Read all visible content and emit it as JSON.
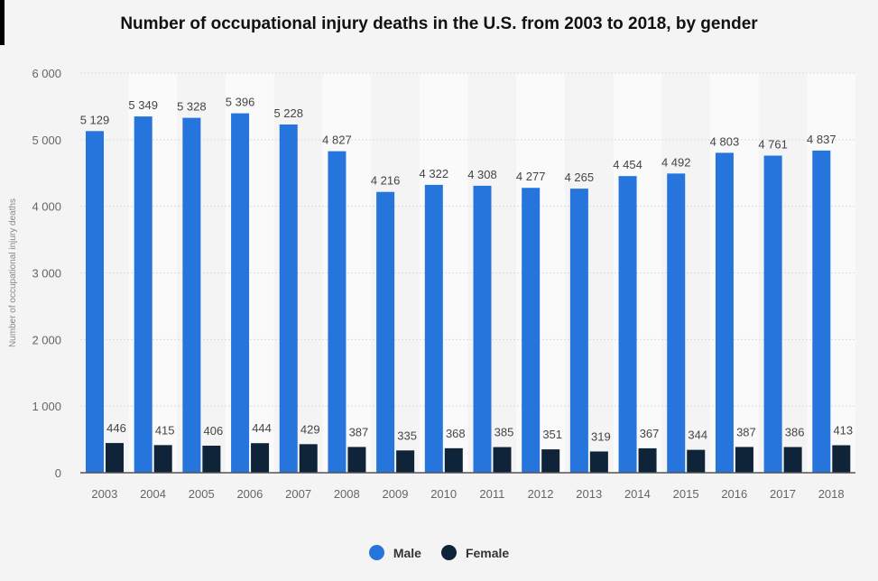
{
  "chart_data": {
    "type": "bar",
    "title": "Number of occupational injury deaths in the U.S. from 2003 to 2018, by gender",
    "xlabel": "",
    "ylabel": "Number of occupational injury deaths",
    "ylim": [
      0,
      6000
    ],
    "yticks": [
      0,
      1000,
      2000,
      3000,
      4000,
      5000,
      6000
    ],
    "grid": true,
    "legend_position": "bottom-center",
    "categories": [
      "2003",
      "2004",
      "2005",
      "2006",
      "2007",
      "2008",
      "2009",
      "2010",
      "2011",
      "2012",
      "2013",
      "2014",
      "2015",
      "2016",
      "2017",
      "2018"
    ],
    "series": [
      {
        "name": "Male",
        "color": "#2575dd",
        "values": [
          5129,
          5349,
          5328,
          5396,
          5228,
          4827,
          4216,
          4322,
          4308,
          4277,
          4265,
          4454,
          4492,
          4803,
          4761,
          4837
        ]
      },
      {
        "name": "Female",
        "color": "#0f2339",
        "values": [
          446,
          415,
          406,
          444,
          429,
          387,
          335,
          368,
          385,
          351,
          319,
          367,
          344,
          387,
          386,
          413
        ]
      }
    ]
  }
}
